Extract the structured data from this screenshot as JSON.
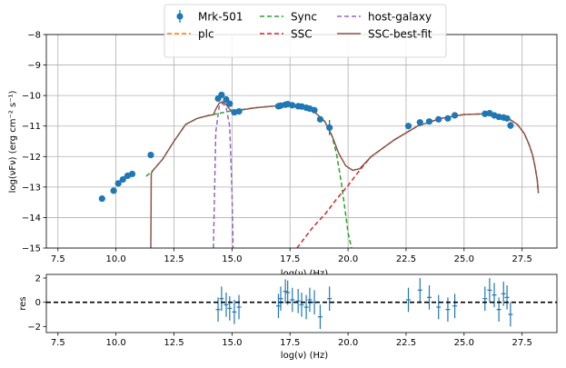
{
  "chart_data": [
    {
      "type": "scatter",
      "xlabel": "log(ν)  (Hz)",
      "ylabel": "log(νFν)  (erg cm⁻²  s⁻¹)",
      "xlim": [
        7.0,
        29.0
      ],
      "ylim": [
        -15.0,
        -8.0
      ],
      "xticks": [
        7.5,
        10.0,
        12.5,
        15.0,
        17.5,
        20.0,
        22.5,
        25.0,
        27.5
      ],
      "xtick_labels": [
        "7.5",
        "10.0",
        "12.5",
        "15.0",
        "17.5",
        "20.0",
        "22.5",
        "25.0",
        "27.5"
      ],
      "yticks": [
        -15,
        -14,
        -13,
        -12,
        -11,
        -10,
        -9,
        -8
      ],
      "ytick_labels": [
        "−15",
        "−14",
        "−13",
        "−12",
        "−11",
        "−10",
        "−9",
        "−8"
      ],
      "grid": true,
      "legend_position": "top-center",
      "legend": [
        {
          "name": "Mrk-501",
          "color": "#1f77b4",
          "style": "marker"
        },
        {
          "name": "plc",
          "color": "#ff7f0e",
          "style": "dashed"
        },
        {
          "name": "Sync",
          "color": "#2ca02c",
          "style": "dashed"
        },
        {
          "name": "SSC",
          "color": "#d62728",
          "style": "dashed"
        },
        {
          "name": "host-galaxy",
          "color": "#9467bd",
          "style": "dashed"
        },
        {
          "name": "SSC-best-fit",
          "color": "#8c564b",
          "style": "solid"
        }
      ],
      "data_points": {
        "x": [
          9.4,
          9.9,
          10.1,
          10.3,
          10.5,
          10.7,
          11.5,
          14.4,
          14.55,
          14.75,
          14.9,
          15.1,
          15.3,
          17.0,
          17.1,
          17.3,
          17.4,
          17.6,
          17.85,
          18.0,
          18.2,
          18.35,
          18.55,
          18.8,
          19.2,
          22.6,
          23.1,
          23.5,
          23.9,
          24.3,
          24.6,
          25.9,
          26.1,
          26.3,
          26.5,
          26.7,
          26.85,
          27.0
        ],
        "y": [
          -13.38,
          -13.12,
          -12.88,
          -12.75,
          -12.63,
          -12.57,
          -11.95,
          -10.1,
          -9.98,
          -10.13,
          -10.27,
          -10.55,
          -10.52,
          -10.35,
          -10.33,
          -10.3,
          -10.28,
          -10.32,
          -10.35,
          -10.36,
          -10.4,
          -10.43,
          -10.48,
          -10.78,
          -11.05,
          -11.0,
          -10.88,
          -10.85,
          -10.78,
          -10.75,
          -10.65,
          -10.6,
          -10.58,
          -10.65,
          -10.7,
          -10.72,
          -10.75,
          -10.98
        ],
        "yerr": [
          0,
          0,
          0,
          0,
          0,
          0,
          0,
          0,
          0,
          0,
          0,
          0,
          0,
          0,
          0,
          0,
          0,
          0,
          0,
          0,
          0,
          0,
          0,
          0,
          0.25,
          0.1,
          0.08,
          0.06,
          0.06,
          0.06,
          0.06,
          0.08,
          0.08,
          0.08,
          0.1,
          0.1,
          0.1,
          0.12
        ]
      },
      "curves": {
        "sync": {
          "x": [
            11.3,
            11.6,
            12.0,
            12.5,
            13.0,
            13.5,
            14.0,
            15.0,
            16.0,
            17.0,
            17.5,
            18.0,
            18.5,
            19.0,
            19.3,
            19.5,
            19.7,
            19.9,
            20.0,
            20.15
          ],
          "y": [
            -12.65,
            -12.45,
            -12.1,
            -11.5,
            -10.95,
            -10.75,
            -10.65,
            -10.5,
            -10.4,
            -10.33,
            -10.32,
            -10.35,
            -10.5,
            -10.85,
            -11.3,
            -11.9,
            -12.8,
            -13.9,
            -14.5,
            -15.0
          ]
        },
        "ssc": {
          "x": [
            17.8,
            18.5,
            19.0,
            19.5,
            20.0,
            20.5,
            21.0,
            22.0,
            23.0,
            24.0,
            25.0,
            26.0,
            26.8,
            27.3,
            27.6,
            27.8,
            27.95,
            28.05,
            28.15,
            28.2
          ],
          "y": [
            -15.0,
            -14.3,
            -13.9,
            -13.4,
            -12.95,
            -12.45,
            -12.0,
            -11.45,
            -11.0,
            -10.75,
            -10.62,
            -10.6,
            -10.7,
            -10.95,
            -11.25,
            -11.6,
            -11.95,
            -12.3,
            -12.75,
            -13.2
          ]
        },
        "host_galaxy": {
          "x": [
            14.2,
            14.3,
            14.45,
            14.6,
            14.75,
            14.9,
            15.0,
            15.05
          ],
          "y": [
            -15.0,
            -11.2,
            -10.35,
            -10.25,
            -10.4,
            -11.0,
            -13.2,
            -15.0
          ]
        },
        "best_fit": {
          "x": [
            11.5,
            11.52,
            11.6,
            12.0,
            12.5,
            13.0,
            13.5,
            14.0,
            14.2,
            14.3,
            14.45,
            14.6,
            14.75,
            14.9,
            15.0,
            15.2,
            16.0,
            17.0,
            17.5,
            18.0,
            18.5,
            19.0,
            19.3,
            19.6,
            19.9,
            20.2,
            20.5,
            21.0,
            22.0,
            23.0,
            24.0,
            25.0,
            26.0,
            26.8,
            27.3,
            27.6,
            27.8,
            27.95,
            28.05,
            28.15,
            28.2
          ],
          "y": [
            -15.0,
            -12.55,
            -12.45,
            -12.1,
            -11.5,
            -10.95,
            -10.75,
            -10.65,
            -10.63,
            -10.45,
            -10.25,
            -10.2,
            -10.3,
            -10.45,
            -10.5,
            -10.5,
            -10.4,
            -10.33,
            -10.32,
            -10.35,
            -10.5,
            -10.85,
            -11.3,
            -11.9,
            -12.3,
            -12.45,
            -12.4,
            -12.0,
            -11.45,
            -11.0,
            -10.75,
            -10.62,
            -10.6,
            -10.7,
            -10.95,
            -11.25,
            -11.6,
            -11.95,
            -12.3,
            -12.75,
            -13.2
          ]
        }
      }
    },
    {
      "type": "scatter",
      "xlabel": "log(ν)  (Hz)",
      "ylabel": "res",
      "xlim": [
        7.0,
        29.0
      ],
      "ylim": [
        -2.5,
        2.3
      ],
      "xticks": [
        7.5,
        10.0,
        12.5,
        15.0,
        17.5,
        20.0,
        22.5,
        25.0,
        27.5
      ],
      "xtick_labels": [
        "7.5",
        "10.0",
        "12.5",
        "15.0",
        "17.5",
        "20.0",
        "22.5",
        "25.0",
        "27.5"
      ],
      "yticks": [
        -2,
        0,
        2
      ],
      "ytick_labels": [
        "−2",
        "0",
        "2"
      ],
      "grid": false,
      "zero_line": 0,
      "residuals": {
        "x": [
          14.4,
          14.55,
          14.75,
          14.9,
          15.1,
          15.3,
          17.0,
          17.1,
          17.3,
          17.4,
          17.6,
          17.85,
          18.0,
          18.2,
          18.35,
          18.55,
          18.8,
          19.2,
          22.6,
          23.1,
          23.5,
          23.9,
          24.3,
          24.6,
          25.9,
          26.1,
          26.3,
          26.5,
          26.7,
          26.85,
          27.0
        ],
        "y": [
          -0.6,
          0.3,
          -0.2,
          -0.5,
          -0.8,
          -0.4,
          -0.3,
          0.3,
          0.9,
          0.8,
          0.2,
          0.1,
          -0.2,
          -0.4,
          0.2,
          0.0,
          -1.2,
          0.3,
          0.2,
          1.0,
          0.4,
          -0.4,
          -0.6,
          -0.3,
          0.3,
          1.0,
          0.6,
          -0.6,
          0.7,
          0.4,
          -1.0
        ],
        "yerr": [
          1.0,
          1.0,
          1.0,
          1.0,
          1.0,
          1.0,
          1.0,
          1.0,
          1.0,
          1.0,
          1.0,
          1.0,
          1.0,
          1.0,
          1.0,
          1.0,
          1.0,
          1.0,
          1.0,
          1.0,
          1.0,
          1.0,
          1.0,
          1.0,
          1.0,
          1.0,
          1.0,
          1.0,
          1.0,
          1.0,
          1.0
        ]
      }
    }
  ]
}
